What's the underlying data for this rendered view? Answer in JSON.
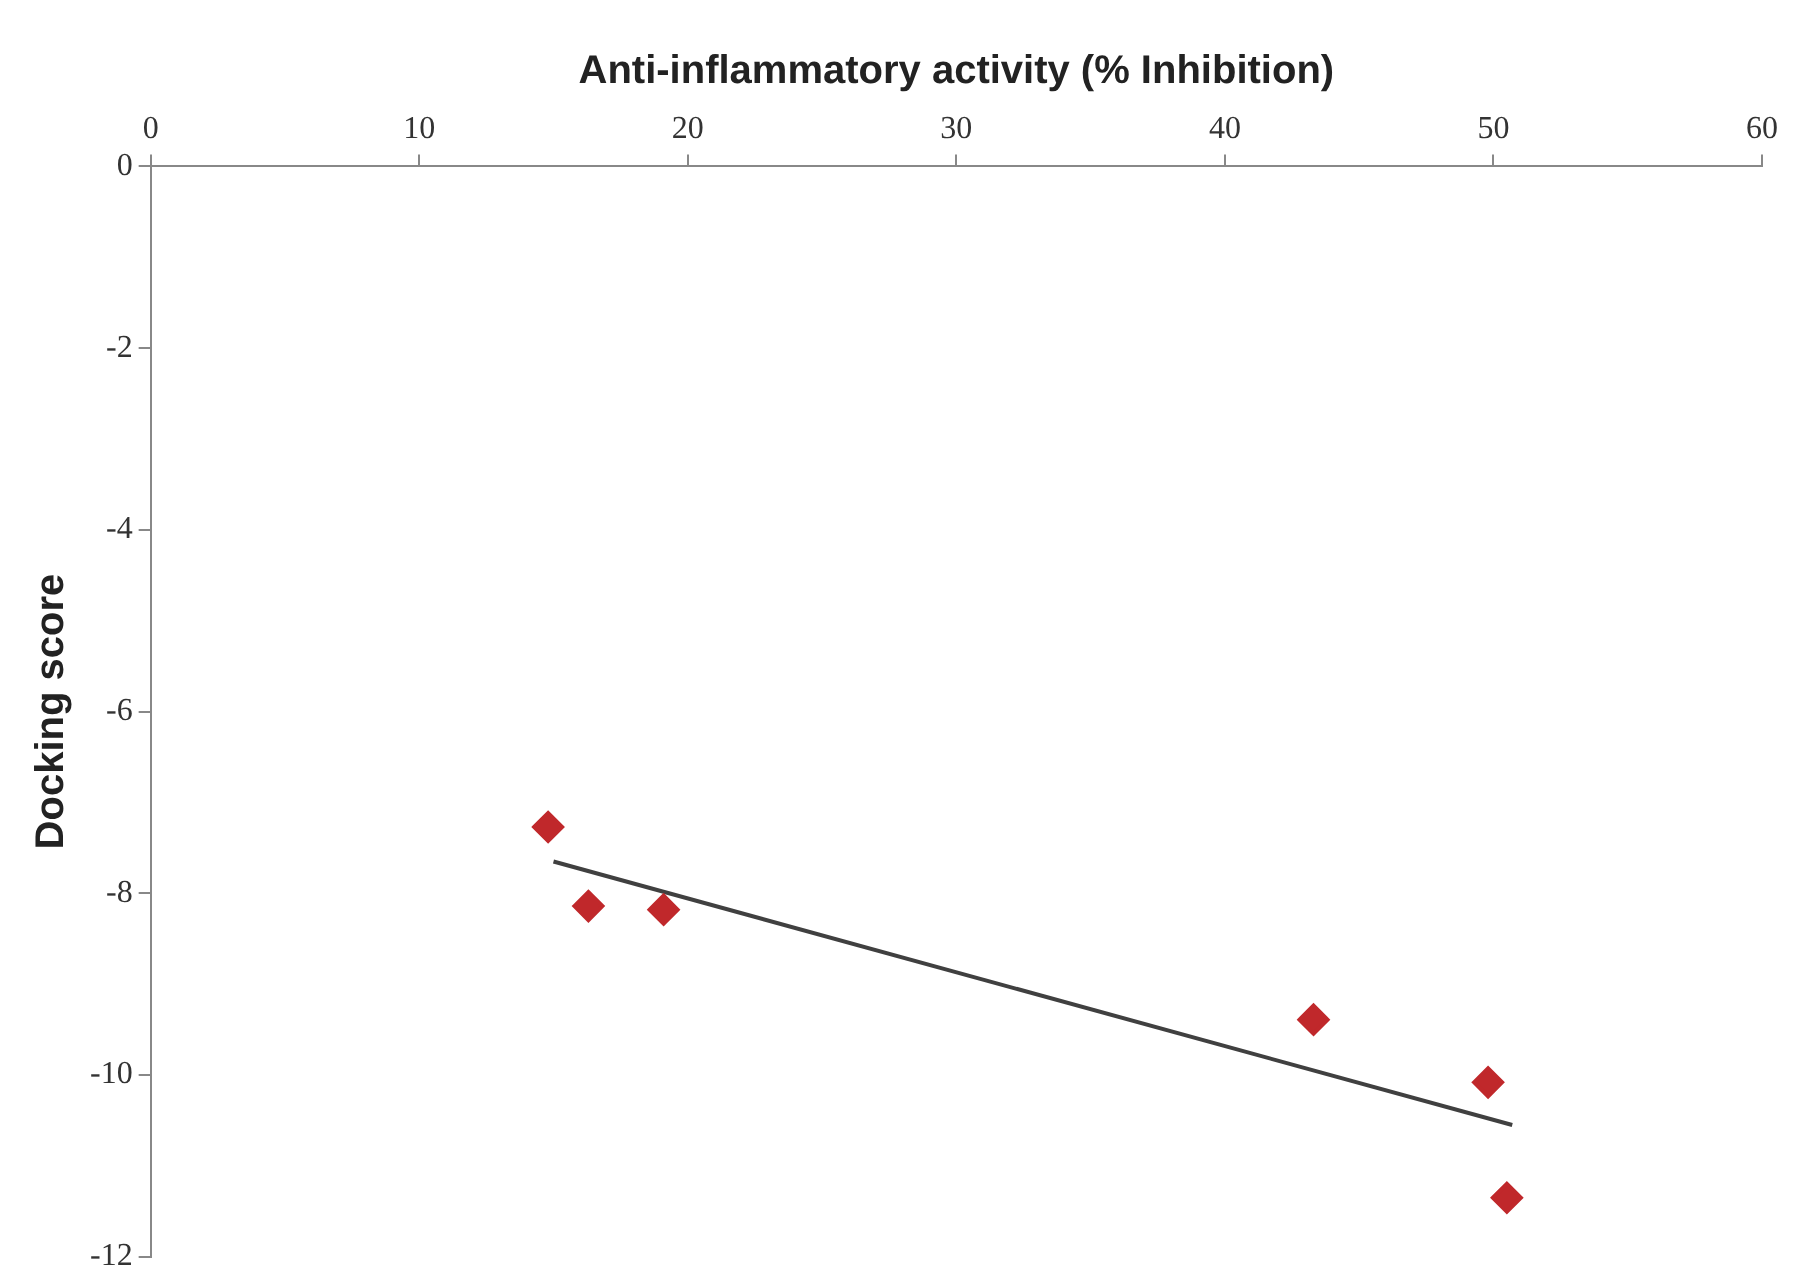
{
  "chart_data": {
    "type": "scatter",
    "xlabel": "Anti-inflammatory activity (% Inhibition)",
    "ylabel": "Docking score",
    "xlim": [
      0,
      60
    ],
    "xticks": [
      0,
      10,
      20,
      30,
      40,
      50,
      60
    ],
    "ylim": [
      -12,
      0
    ],
    "yticks": [
      -12,
      -10,
      -8,
      -6,
      -4,
      -2,
      0
    ],
    "grid": false,
    "legend": false,
    "series": [
      {
        "type": "scatter",
        "color": "#c0282b",
        "marker": "diamond",
        "x": [
          14.8,
          16.3,
          19.1,
          43.3,
          49.8,
          50.5
        ],
        "values": [
          -7.27,
          -8.14,
          -8.18,
          -9.39,
          -10.08,
          -11.35
        ]
      },
      {
        "type": "line",
        "color": "#404040",
        "marker": "none",
        "line_style": "solid",
        "x": [
          15.0,
          50.7
        ],
        "values": [
          -7.65,
          -10.55
        ]
      }
    ]
  }
}
